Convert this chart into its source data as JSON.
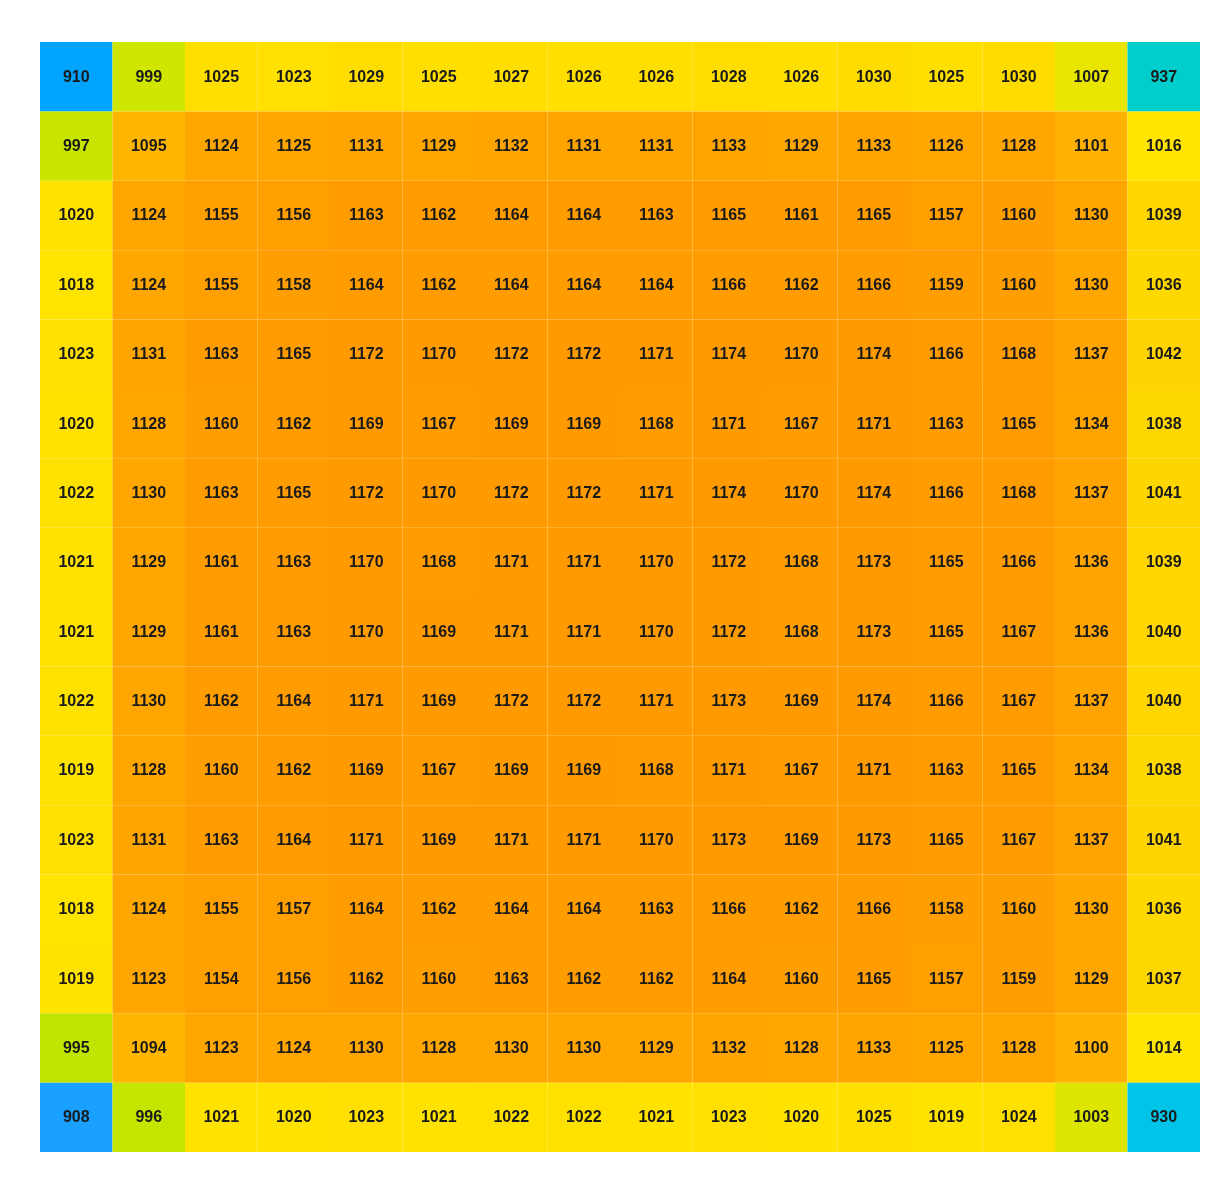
{
  "chart_data": {
    "type": "heatmap",
    "data_labels": true,
    "categories": [
      null,
      null,
      null,
      null,
      null,
      null,
      null,
      null,
      null,
      null,
      null,
      null,
      null,
      null,
      null,
      null
    ],
    "y_categories": [
      null,
      null,
      null,
      null,
      null,
      null,
      null,
      null,
      null,
      null,
      null,
      null,
      null,
      null,
      null,
      null
    ],
    "cells": [
      [
        910,
        999,
        1025,
        1023,
        1029,
        1025,
        1027,
        1026,
        1026,
        1028,
        1026,
        1030,
        1025,
        1030,
        1007,
        937
      ],
      [
        997,
        1095,
        1124,
        1125,
        1131,
        1129,
        1132,
        1131,
        1131,
        1133,
        1129,
        1133,
        1126,
        1128,
        1101,
        1016
      ],
      [
        1020,
        1124,
        1155,
        1156,
        1163,
        1162,
        1164,
        1164,
        1163,
        1165,
        1161,
        1165,
        1157,
        1160,
        1130,
        1039
      ],
      [
        1018,
        1124,
        1155,
        1158,
        1164,
        1162,
        1164,
        1164,
        1164,
        1166,
        1162,
        1166,
        1159,
        1160,
        1130,
        1036
      ],
      [
        1023,
        1131,
        1163,
        1165,
        1172,
        1170,
        1172,
        1172,
        1171,
        1174,
        1170,
        1174,
        1166,
        1168,
        1137,
        1042
      ],
      [
        1020,
        1128,
        1160,
        1162,
        1169,
        1167,
        1169,
        1169,
        1168,
        1171,
        1167,
        1171,
        1163,
        1165,
        1134,
        1038
      ],
      [
        1022,
        1130,
        1163,
        1165,
        1172,
        1170,
        1172,
        1172,
        1171,
        1174,
        1170,
        1174,
        1166,
        1168,
        1137,
        1041
      ],
      [
        1021,
        1129,
        1161,
        1163,
        1170,
        1168,
        1171,
        1171,
        1170,
        1172,
        1168,
        1173,
        1165,
        1166,
        1136,
        1039
      ],
      [
        1021,
        1129,
        1161,
        1163,
        1170,
        1169,
        1171,
        1171,
        1170,
        1172,
        1168,
        1173,
        1165,
        1167,
        1136,
        1040
      ],
      [
        1022,
        1130,
        1162,
        1164,
        1171,
        1169,
        1172,
        1172,
        1171,
        1173,
        1169,
        1174,
        1166,
        1167,
        1137,
        1040
      ],
      [
        1019,
        1128,
        1160,
        1162,
        1169,
        1167,
        1169,
        1169,
        1168,
        1171,
        1167,
        1171,
        1163,
        1165,
        1134,
        1038
      ],
      [
        1023,
        1131,
        1163,
        1164,
        1171,
        1169,
        1171,
        1171,
        1170,
        1173,
        1169,
        1173,
        1165,
        1167,
        1137,
        1041
      ],
      [
        1018,
        1124,
        1155,
        1157,
        1164,
        1162,
        1164,
        1164,
        1163,
        1166,
        1162,
        1166,
        1158,
        1160,
        1130,
        1036
      ],
      [
        1019,
        1123,
        1154,
        1156,
        1162,
        1160,
        1163,
        1162,
        1162,
        1164,
        1160,
        1165,
        1157,
        1159,
        1129,
        1037
      ],
      [
        995,
        1094,
        1123,
        1124,
        1130,
        1128,
        1130,
        1130,
        1129,
        1132,
        1128,
        1133,
        1125,
        1128,
        1100,
        1014
      ],
      [
        908,
        996,
        1021,
        1020,
        1023,
        1021,
        1022,
        1022,
        1021,
        1023,
        1020,
        1025,
        1019,
        1024,
        1003,
        930
      ]
    ]
  }
}
